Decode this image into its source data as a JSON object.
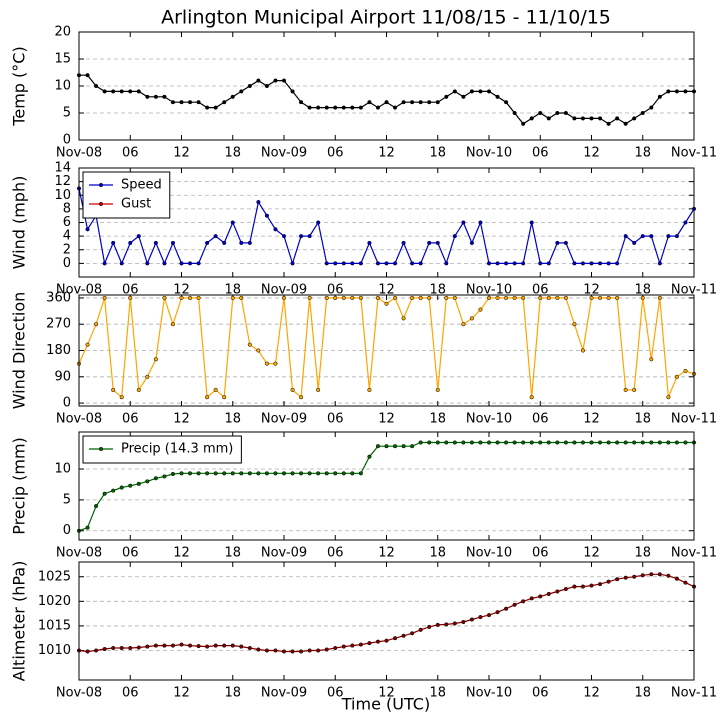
{
  "title": "Arlington Municipal Airport 11/08/15 - 11/10/15",
  "x_label": "Time (UTC)",
  "chart_data": [
    {
      "type": "line",
      "ylabel": "Temp (°C)",
      "x": [
        0,
        1,
        2,
        3,
        4,
        5,
        6,
        7,
        8,
        9,
        10,
        11,
        12,
        13,
        14,
        15,
        16,
        17,
        18,
        19,
        20,
        21,
        22,
        23,
        24,
        25,
        26,
        27,
        28,
        29,
        30,
        31,
        32,
        33,
        34,
        35,
        36,
        37,
        38,
        39,
        40,
        41,
        42,
        43,
        44,
        45,
        46,
        47,
        48,
        49,
        50,
        51,
        52,
        53,
        54,
        55,
        56,
        57,
        58,
        59,
        60,
        61,
        62,
        63,
        64,
        65,
        66,
        67,
        68,
        69,
        70,
        71,
        72
      ],
      "xlim": [
        0,
        72
      ],
      "xticks": [
        {
          "value": 0,
          "label": "Nov-08"
        },
        {
          "value": 6,
          "label": "06"
        },
        12,
        18,
        {
          "value": 24,
          "label": "Nov-09"
        },
        {
          "value": 30,
          "label": "06"
        },
        {
          "value": 36,
          "label": "12"
        },
        {
          "value": 42,
          "label": "18"
        },
        {
          "value": 48,
          "label": "Nov-10"
        },
        {
          "value": 54,
          "label": "06"
        },
        {
          "value": 60,
          "label": "12"
        },
        {
          "value": 66,
          "label": "18"
        },
        {
          "value": 72,
          "label": "Nov-11"
        }
      ],
      "ylim": [
        0,
        20
      ],
      "yticks": [
        0,
        5,
        10,
        15,
        20
      ],
      "grid": true,
      "series": [
        {
          "color": "#000000",
          "values": [
            12,
            12,
            10,
            9,
            9,
            9,
            9,
            9,
            8,
            8,
            8,
            7,
            7,
            7,
            7,
            6,
            6,
            7,
            8,
            9,
            10,
            11,
            10,
            11,
            11,
            9,
            7,
            6,
            6,
            6,
            6,
            6,
            6,
            6,
            7,
            6,
            7,
            6,
            7,
            7,
            7,
            7,
            7,
            8,
            9,
            8,
            9,
            9,
            9,
            8,
            7,
            5,
            3,
            4,
            5,
            4,
            5,
            5,
            4,
            4,
            4,
            4,
            3,
            4,
            3,
            4,
            5,
            6,
            8,
            9,
            9,
            9,
            9
          ]
        }
      ]
    },
    {
      "type": "line",
      "ylabel": "Wind (mph)",
      "x": [
        0,
        1,
        2,
        3,
        4,
        5,
        6,
        7,
        8,
        9,
        10,
        11,
        12,
        13,
        14,
        15,
        16,
        17,
        18,
        19,
        20,
        21,
        22,
        23,
        24,
        25,
        26,
        27,
        28,
        29,
        30,
        31,
        32,
        33,
        34,
        35,
        36,
        37,
        38,
        39,
        40,
        41,
        42,
        43,
        44,
        45,
        46,
        47,
        48,
        49,
        50,
        51,
        52,
        53,
        54,
        55,
        56,
        57,
        58,
        59,
        60,
        61,
        62,
        63,
        64,
        65,
        66,
        67,
        68,
        69,
        70,
        71,
        72
      ],
      "xlim": [
        0,
        72
      ],
      "xticks": [
        {
          "value": 0,
          "label": "Nov-08"
        },
        {
          "value": 6,
          "label": "06"
        },
        12,
        18,
        {
          "value": 24,
          "label": "Nov-09"
        },
        {
          "value": 30,
          "label": "06"
        },
        {
          "value": 36,
          "label": "12"
        },
        {
          "value": 42,
          "label": "18"
        },
        {
          "value": 48,
          "label": "Nov-10"
        },
        {
          "value": 54,
          "label": "06"
        },
        {
          "value": 60,
          "label": "12"
        },
        {
          "value": 66,
          "label": "18"
        },
        {
          "value": 72,
          "label": "Nov-11"
        }
      ],
      "ylim": [
        -2,
        14
      ],
      "yticks": [
        0,
        2,
        4,
        6,
        8,
        10,
        12,
        14
      ],
      "grid": true,
      "legend": "upper left",
      "series": [
        {
          "name": "Speed",
          "color": "#0000cc",
          "values": [
            11,
            5,
            7,
            0,
            3,
            0,
            3,
            4,
            0,
            3,
            0,
            3,
            0,
            0,
            0,
            3,
            4,
            3,
            6,
            3,
            3,
            9,
            7,
            5,
            4,
            0,
            4,
            4,
            6,
            0,
            0,
            0,
            0,
            0,
            3,
            0,
            0,
            0,
            3,
            0,
            0,
            3,
            3,
            0,
            4,
            6,
            3,
            6,
            0,
            0,
            0,
            0,
            0,
            6,
            0,
            0,
            3,
            3,
            0,
            0,
            0,
            0,
            0,
            0,
            4,
            3,
            4,
            4,
            0,
            4,
            4,
            6,
            8
          ]
        },
        {
          "name": "Gust",
          "color": "#cc0000",
          "values": [
            null,
            null,
            null,
            null,
            null,
            null,
            null,
            null,
            null,
            null,
            null,
            null,
            null,
            null,
            null,
            null,
            null,
            null,
            null,
            null,
            null,
            null,
            null,
            null,
            null,
            null,
            null,
            null,
            null,
            null,
            null,
            null,
            null,
            null,
            null,
            null,
            null,
            null,
            null,
            null,
            null,
            null,
            null,
            null,
            null,
            null,
            null,
            null,
            null,
            null,
            null,
            null,
            null,
            null,
            null,
            null,
            null,
            null,
            null,
            null,
            null,
            null,
            null,
            null,
            null,
            null,
            null,
            null,
            null,
            null,
            null,
            null,
            null
          ]
        }
      ]
    },
    {
      "type": "line",
      "ylabel": "Wind Direction",
      "x": [
        0,
        1,
        2,
        3,
        4,
        5,
        6,
        7,
        8,
        9,
        10,
        11,
        12,
        13,
        14,
        15,
        16,
        17,
        18,
        19,
        20,
        21,
        22,
        23,
        24,
        25,
        26,
        27,
        28,
        29,
        30,
        31,
        32,
        33,
        34,
        35,
        36,
        37,
        38,
        39,
        40,
        41,
        42,
        43,
        44,
        45,
        46,
        47,
        48,
        49,
        50,
        51,
        52,
        53,
        54,
        55,
        56,
        57,
        58,
        59,
        60,
        61,
        62,
        63,
        64,
        65,
        66,
        67,
        68,
        69,
        70,
        71,
        72
      ],
      "xlim": [
        0,
        72
      ],
      "xticks": [
        {
          "value": 0,
          "label": "Nov-08"
        },
        {
          "value": 6,
          "label": "06"
        },
        12,
        18,
        {
          "value": 24,
          "label": "Nov-09"
        },
        {
          "value": 30,
          "label": "06"
        },
        {
          "value": 36,
          "label": "12"
        },
        {
          "value": 42,
          "label": "18"
        },
        {
          "value": 48,
          "label": "Nov-10"
        },
        {
          "value": 54,
          "label": "06"
        },
        {
          "value": 60,
          "label": "12"
        },
        {
          "value": 66,
          "label": "18"
        },
        {
          "value": 72,
          "label": "Nov-11"
        }
      ],
      "ylim": [
        -10,
        370
      ],
      "yticks": [
        0,
        90,
        180,
        270,
        360
      ],
      "grid": true,
      "series": [
        {
          "color": "#ffa500",
          "values": [
            135,
            200,
            270,
            360,
            45,
            20,
            360,
            45,
            90,
            150,
            360,
            270,
            360,
            360,
            360,
            20,
            45,
            20,
            360,
            360,
            200,
            180,
            135,
            135,
            360,
            45,
            20,
            360,
            45,
            360,
            360,
            360,
            360,
            360,
            45,
            360,
            340,
            360,
            290,
            360,
            360,
            360,
            45,
            360,
            360,
            270,
            290,
            320,
            360,
            360,
            360,
            360,
            360,
            20,
            360,
            360,
            360,
            360,
            270,
            180,
            360,
            360,
            360,
            360,
            45,
            45,
            360,
            150,
            360,
            20,
            90,
            110,
            100
          ]
        }
      ]
    },
    {
      "type": "line",
      "ylabel": "Precip (mm)",
      "x": [
        0,
        1,
        2,
        3,
        4,
        5,
        6,
        7,
        8,
        9,
        10,
        11,
        12,
        13,
        14,
        15,
        16,
        17,
        18,
        19,
        20,
        21,
        22,
        23,
        24,
        25,
        26,
        27,
        28,
        29,
        30,
        31,
        32,
        33,
        34,
        35,
        36,
        37,
        38,
        39,
        40,
        41,
        42,
        43,
        44,
        45,
        46,
        47,
        48,
        49,
        50,
        51,
        52,
        53,
        54,
        55,
        56,
        57,
        58,
        59,
        60,
        61,
        62,
        63,
        64,
        65,
        66,
        67,
        68,
        69,
        70,
        71,
        72
      ],
      "xlim": [
        0,
        72
      ],
      "xticks": [
        {
          "value": 0,
          "label": "Nov-08"
        },
        {
          "value": 6,
          "label": "06"
        },
        12,
        18,
        {
          "value": 24,
          "label": "Nov-09"
        },
        {
          "value": 30,
          "label": "06"
        },
        {
          "value": 36,
          "label": "12"
        },
        {
          "value": 42,
          "label": "18"
        },
        {
          "value": 48,
          "label": "Nov-10"
        },
        {
          "value": 54,
          "label": "06"
        },
        {
          "value": 60,
          "label": "12"
        },
        {
          "value": 66,
          "label": "18"
        },
        {
          "value": 72,
          "label": "Nov-11"
        }
      ],
      "ylim": [
        -1.5,
        16
      ],
      "yticks": [
        0,
        5,
        10
      ],
      "grid": true,
      "legend": "upper left",
      "series": [
        {
          "name": "Precip (14.3 mm)",
          "color": "#006400",
          "values": [
            0,
            0.5,
            4,
            6,
            6.5,
            7,
            7.3,
            7.6,
            8,
            8.5,
            8.8,
            9.2,
            9.3,
            9.3,
            9.3,
            9.3,
            9.3,
            9.3,
            9.3,
            9.3,
            9.3,
            9.3,
            9.3,
            9.3,
            9.3,
            9.3,
            9.3,
            9.3,
            9.3,
            9.3,
            9.3,
            9.3,
            9.3,
            9.3,
            12,
            13.7,
            13.7,
            13.7,
            13.7,
            13.7,
            14.3,
            14.3,
            14.3,
            14.3,
            14.3,
            14.3,
            14.3,
            14.3,
            14.3,
            14.3,
            14.3,
            14.3,
            14.3,
            14.3,
            14.3,
            14.3,
            14.3,
            14.3,
            14.3,
            14.3,
            14.3,
            14.3,
            14.3,
            14.3,
            14.3,
            14.3,
            14.3,
            14.3,
            14.3,
            14.3,
            14.3,
            14.3,
            14.3
          ]
        }
      ]
    },
    {
      "type": "line",
      "ylabel": "Altimeter (hPa)",
      "x": [
        0,
        1,
        2,
        3,
        4,
        5,
        6,
        7,
        8,
        9,
        10,
        11,
        12,
        13,
        14,
        15,
        16,
        17,
        18,
        19,
        20,
        21,
        22,
        23,
        24,
        25,
        26,
        27,
        28,
        29,
        30,
        31,
        32,
        33,
        34,
        35,
        36,
        37,
        38,
        39,
        40,
        41,
        42,
        43,
        44,
        45,
        46,
        47,
        48,
        49,
        50,
        51,
        52,
        53,
        54,
        55,
        56,
        57,
        58,
        59,
        60,
        61,
        62,
        63,
        64,
        65,
        66,
        67,
        68,
        69,
        70,
        71,
        72
      ],
      "xlim": [
        0,
        72
      ],
      "xticks": [
        {
          "value": 0,
          "label": "Nov-08"
        },
        {
          "value": 6,
          "label": "06"
        },
        12,
        18,
        {
          "value": 24,
          "label": "Nov-09"
        },
        {
          "value": 30,
          "label": "06"
        },
        {
          "value": 36,
          "label": "12"
        },
        {
          "value": 42,
          "label": "18"
        },
        {
          "value": 48,
          "label": "Nov-10"
        },
        {
          "value": 54,
          "label": "06"
        },
        {
          "value": 60,
          "label": "12"
        },
        {
          "value": 66,
          "label": "18"
        },
        {
          "value": 72,
          "label": "Nov-11"
        }
      ],
      "ylim": [
        1004,
        1028
      ],
      "yticks": [
        1010,
        1015,
        1020,
        1025
      ],
      "grid": true,
      "series": [
        {
          "color": "#800000",
          "values": [
            1010,
            1009.8,
            1010,
            1010.3,
            1010.5,
            1010.5,
            1010.5,
            1010.6,
            1010.8,
            1011,
            1011,
            1011,
            1011.2,
            1011,
            1010.9,
            1010.8,
            1011,
            1011,
            1011,
            1010.8,
            1010.5,
            1010.2,
            1010,
            1010,
            1009.8,
            1009.8,
            1009.8,
            1010,
            1010,
            1010.2,
            1010.5,
            1010.8,
            1011,
            1011.2,
            1011.5,
            1011.8,
            1012,
            1012.5,
            1013,
            1013.5,
            1014.2,
            1014.8,
            1015.2,
            1015.3,
            1015.5,
            1015.8,
            1016.3,
            1016.8,
            1017.2,
            1017.8,
            1018.5,
            1019.3,
            1020,
            1020.6,
            1021,
            1021.5,
            1022,
            1022.5,
            1023,
            1023,
            1023.2,
            1023.5,
            1024,
            1024.5,
            1024.8,
            1025,
            1025.3,
            1025.5,
            1025.5,
            1025.2,
            1024.6,
            1023.8,
            1023
          ]
        }
      ]
    }
  ]
}
